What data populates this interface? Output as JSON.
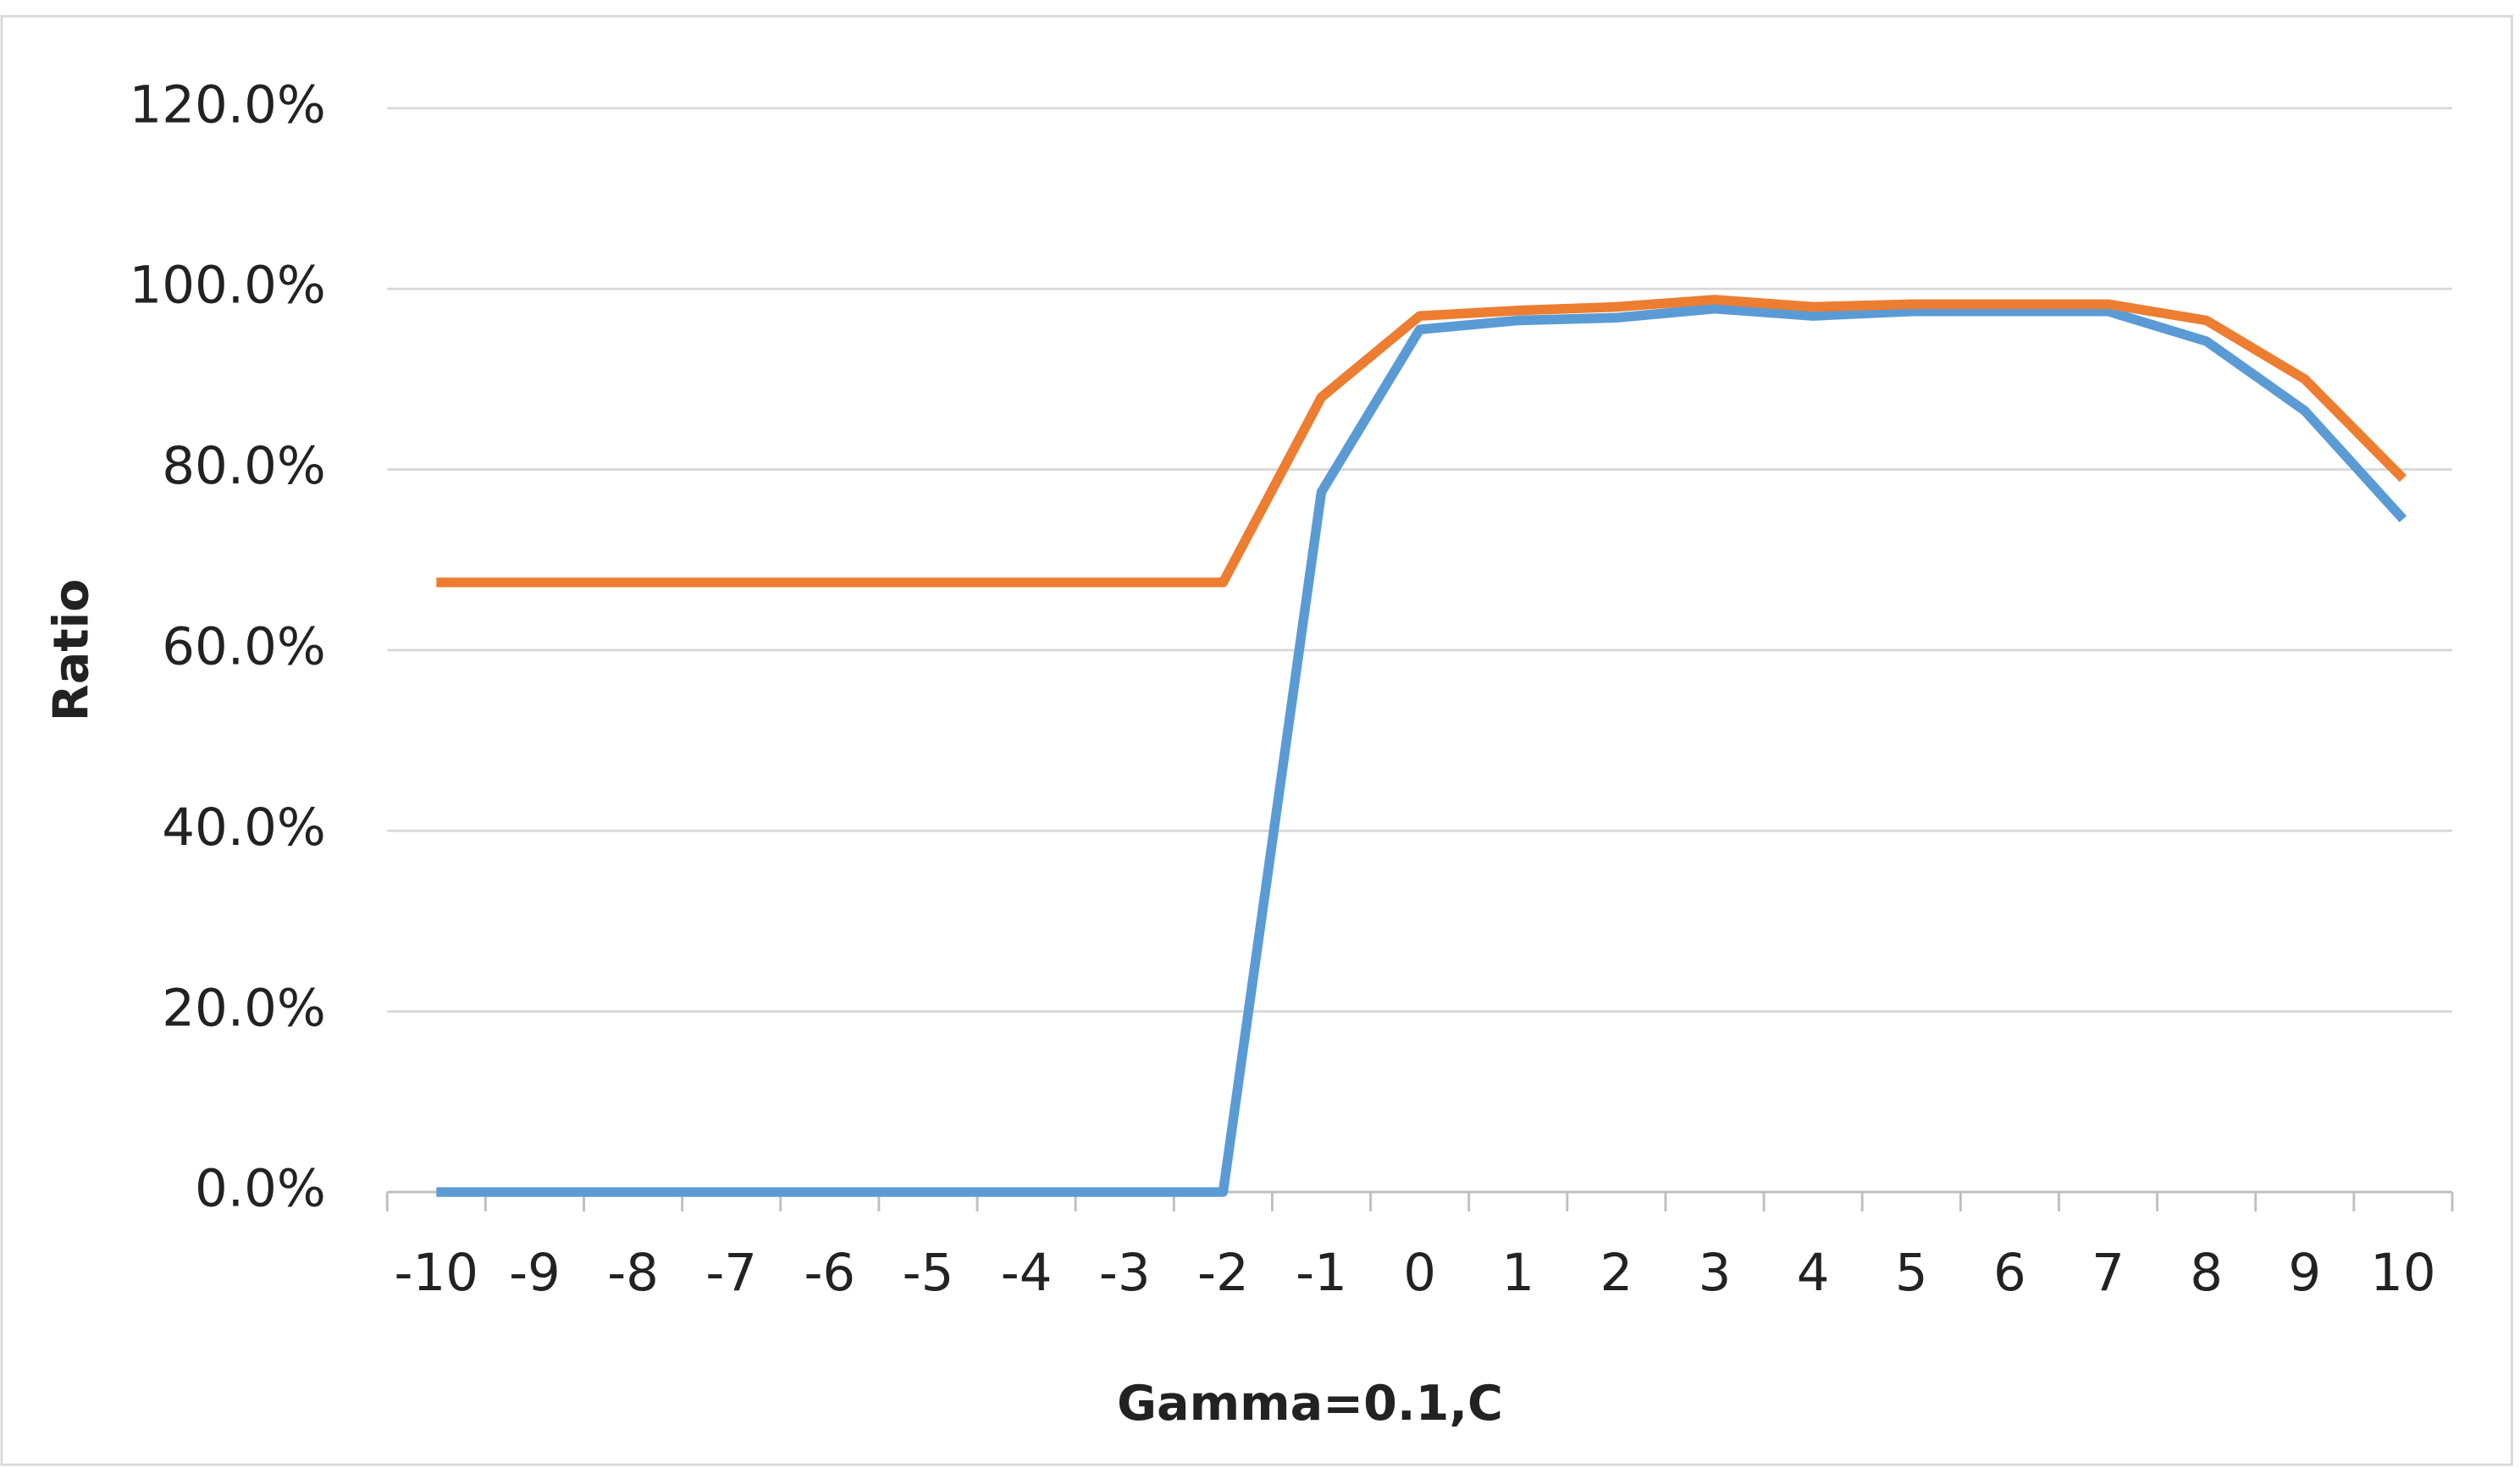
{
  "chart_data": {
    "type": "line",
    "x_label": "Gamma=0.1,C",
    "y_label": "Ratio",
    "categories": [
      "-10",
      "-9",
      "-8",
      "-7",
      "-6",
      "-5",
      "-4",
      "-3",
      "-2",
      "-1",
      "0",
      "1",
      "2",
      "3",
      "4",
      "5",
      "6",
      "7",
      "8",
      "9",
      "10"
    ],
    "series": [
      {
        "color": "#5b9bd5",
        "values": [
          0,
          0,
          0,
          0,
          0,
          0,
          0,
          0,
          0,
          77.5,
          95.5,
          96.5,
          96.8,
          97.8,
          97,
          97.5,
          97.5,
          97.5,
          94.2,
          86.5,
          74.5
        ]
      },
      {
        "color": "#ed7d31",
        "values": [
          67.5,
          67.5,
          67.5,
          67.5,
          67.5,
          67.5,
          67.5,
          67.5,
          67.5,
          88,
          97,
          97.6,
          98,
          98.8,
          98,
          98.3,
          98.3,
          98.3,
          96.5,
          90,
          79
        ]
      }
    ],
    "ylim": [
      0,
      120
    ],
    "yticks": [
      {
        "value": 0,
        "label": "0.0%"
      },
      {
        "value": 20,
        "label": "20.0%"
      },
      {
        "value": 40,
        "label": "40.0%"
      },
      {
        "value": 60,
        "label": "60.0%"
      },
      {
        "value": 80,
        "label": "80.0%"
      },
      {
        "value": 100,
        "label": "100.0%"
      },
      {
        "value": 120,
        "label": "120.0%"
      }
    ],
    "grid": true
  }
}
